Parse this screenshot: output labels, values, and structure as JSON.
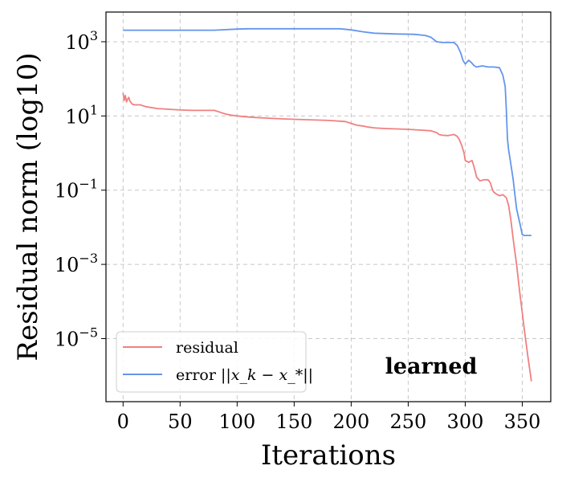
{
  "chart_data": {
    "type": "line",
    "title": "",
    "xlabel": "Iterations",
    "ylabel": "Residual norm (log10)",
    "xlim": [
      -15,
      375
    ],
    "ylim_log10": [
      -6.7,
      3.8
    ],
    "y_scale": "log10",
    "grid": true,
    "legend_position": "bottom-left",
    "x_ticks": [
      0,
      50,
      100,
      150,
      200,
      250,
      300,
      350
    ],
    "x_tick_labels": [
      "0",
      "50",
      "100",
      "150",
      "200",
      "250",
      "300",
      "350"
    ],
    "y_ticks_log10": [
      3,
      1,
      -1,
      -3,
      -5
    ],
    "y_tick_labels": [
      {
        "base": "10",
        "exp": "3"
      },
      {
        "base": "10",
        "exp": "1"
      },
      {
        "base": "10",
        "exp": "−1"
      },
      {
        "base": "10",
        "exp": "−3"
      },
      {
        "base": "10",
        "exp": "−5"
      }
    ],
    "annotation": "learned",
    "series": [
      {
        "name": "residual",
        "color": "#f08080",
        "x": [
          0,
          1,
          2,
          3,
          4,
          5,
          6,
          8,
          10,
          15,
          20,
          30,
          40,
          50,
          60,
          70,
          80,
          85,
          90,
          95,
          100,
          110,
          120,
          140,
          160,
          180,
          195,
          200,
          205,
          210,
          215,
          220,
          225,
          230,
          240,
          250,
          260,
          270,
          275,
          277,
          280,
          285,
          290,
          293,
          295,
          297,
          299,
          300,
          303,
          306,
          308,
          310,
          313,
          316,
          320,
          322,
          324,
          325,
          327,
          330,
          333,
          336,
          338,
          340,
          342,
          345,
          348,
          350,
          352,
          355,
          358
        ],
        "y_log10": [
          1.62,
          1.42,
          1.55,
          1.38,
          1.45,
          1.5,
          1.4,
          1.32,
          1.3,
          1.3,
          1.25,
          1.2,
          1.18,
          1.16,
          1.15,
          1.15,
          1.15,
          1.1,
          1.05,
          1.02,
          1.0,
          0.97,
          0.95,
          0.92,
          0.9,
          0.88,
          0.85,
          0.8,
          0.75,
          0.73,
          0.7,
          0.68,
          0.67,
          0.66,
          0.65,
          0.64,
          0.62,
          0.6,
          0.55,
          0.5,
          0.48,
          0.47,
          0.5,
          0.45,
          0.35,
          0.2,
          0.0,
          -0.2,
          -0.25,
          -0.2,
          -0.4,
          -0.65,
          -0.75,
          -0.72,
          -0.72,
          -0.8,
          -1.0,
          -1.05,
          -1.1,
          -1.15,
          -1.12,
          -1.2,
          -1.4,
          -1.8,
          -2.3,
          -3.0,
          -3.8,
          -4.3,
          -4.8,
          -5.5,
          -6.15
        ]
      },
      {
        "name": "error ||x_k − x_*||",
        "color": "#6495ed",
        "x": [
          0,
          20,
          40,
          60,
          80,
          100,
          110,
          120,
          150,
          190,
          200,
          210,
          220,
          230,
          240,
          255,
          265,
          270,
          275,
          280,
          285,
          290,
          293,
          296,
          298,
          300,
          303,
          305,
          308,
          310,
          315,
          320,
          325,
          330,
          333,
          335,
          336,
          337,
          338,
          340,
          342,
          345,
          348,
          350,
          352,
          355,
          358
        ],
        "y_log10": [
          3.31,
          3.31,
          3.31,
          3.31,
          3.31,
          3.34,
          3.35,
          3.35,
          3.35,
          3.35,
          3.32,
          3.27,
          3.23,
          3.22,
          3.21,
          3.2,
          3.17,
          3.12,
          3.0,
          2.98,
          2.98,
          2.98,
          2.9,
          2.7,
          2.5,
          2.4,
          2.5,
          2.45,
          2.35,
          2.32,
          2.35,
          2.32,
          2.32,
          2.3,
          2.1,
          1.8,
          1.2,
          0.4,
          0.1,
          -0.3,
          -0.7,
          -1.5,
          -1.9,
          -2.2,
          -2.22,
          -2.22,
          -2.22
        ]
      }
    ],
    "legend": [
      {
        "plain": "residual"
      },
      {
        "plain": "error ",
        "math": "||x_k − x_*||"
      }
    ]
  }
}
